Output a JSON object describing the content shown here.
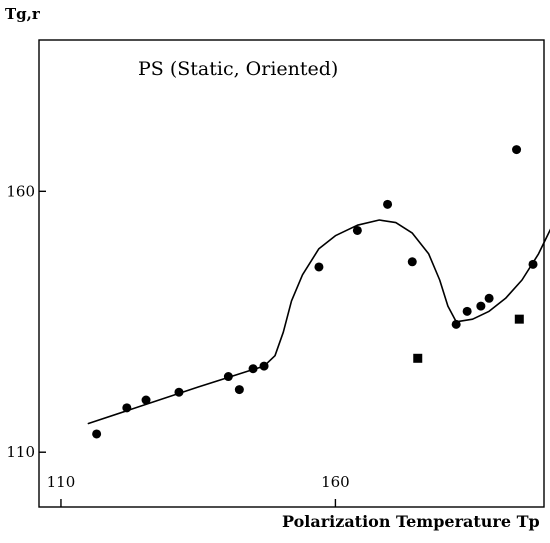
{
  "chart_data": {
    "type": "scatter",
    "title": "PS (Static, Oriented)",
    "xlabel": "Polarization Temperature Tp",
    "ylabel": "Tg,r",
    "xlim": [
      106,
      198
    ],
    "ylim": [
      99.5,
      189
    ],
    "x_ticks": [
      110,
      160
    ],
    "y_ticks": [
      110,
      160
    ],
    "grid": false,
    "series": [
      {
        "marker": "circle",
        "points": [
          [
            116.5,
            113.5
          ],
          [
            122,
            118.5
          ],
          [
            125.5,
            120
          ],
          [
            131.5,
            121.5
          ],
          [
            140.5,
            124.5
          ],
          [
            142.5,
            122
          ],
          [
            145,
            126
          ],
          [
            147,
            126.5
          ],
          [
            157,
            145.5
          ],
          [
            164,
            152.5
          ],
          [
            169.5,
            157.5
          ],
          [
            174,
            146.5
          ],
          [
            182,
            134.5
          ],
          [
            184,
            137
          ],
          [
            186.5,
            138
          ],
          [
            188,
            139.5
          ],
          [
            193,
            168
          ],
          [
            196,
            146
          ]
        ]
      },
      {
        "marker": "square",
        "points": [
          [
            175,
            128
          ],
          [
            193.5,
            135.5
          ]
        ]
      }
    ],
    "fit_curve": [
      [
        115,
        115.5
      ],
      [
        125,
        119
      ],
      [
        135,
        122.5
      ],
      [
        144,
        125.5
      ],
      [
        147,
        126.5
      ],
      [
        149,
        128.5
      ],
      [
        150.5,
        133
      ],
      [
        152,
        139
      ],
      [
        154,
        144
      ],
      [
        157,
        149
      ],
      [
        160,
        151.5
      ],
      [
        164,
        153.5
      ],
      [
        168,
        154.5
      ],
      [
        171,
        154
      ],
      [
        174,
        152
      ],
      [
        177,
        148
      ],
      [
        179,
        143
      ],
      [
        180.5,
        138
      ],
      [
        182,
        135
      ],
      [
        185,
        135.5
      ],
      [
        188,
        137
      ],
      [
        191,
        139.5
      ],
      [
        194,
        143
      ],
      [
        197,
        148
      ],
      [
        200,
        154.5
      ],
      [
        202,
        160
      ]
    ],
    "colors": {
      "ink": "#000000",
      "background": "#ffffff"
    }
  }
}
